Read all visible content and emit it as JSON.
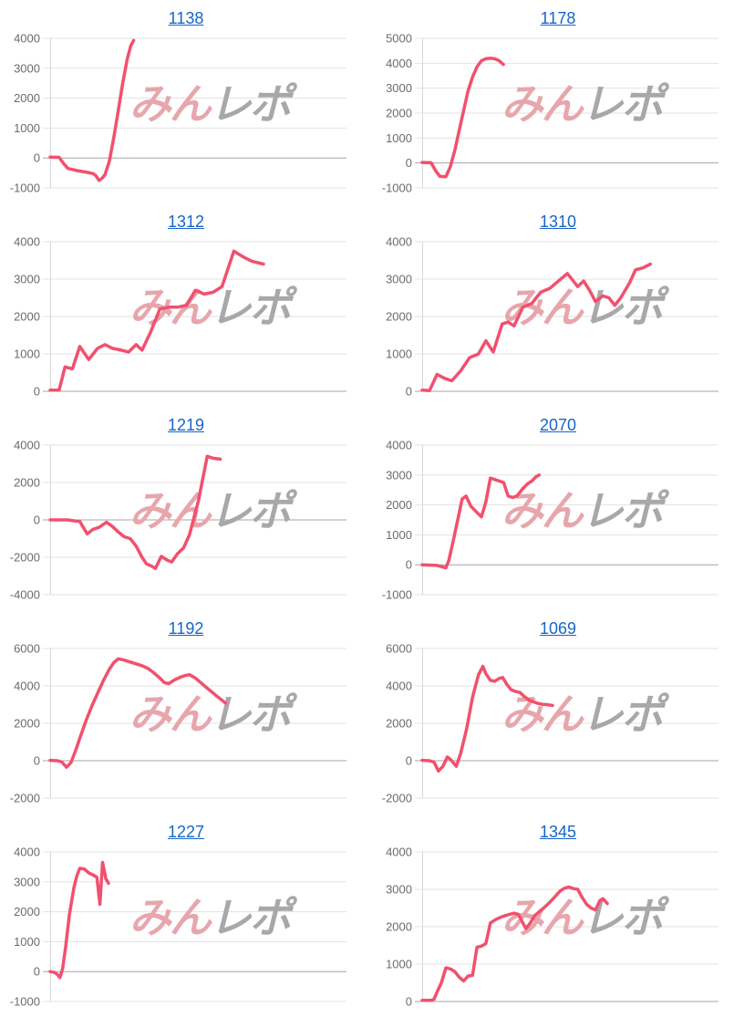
{
  "watermark": {
    "left": "みん",
    "right": "レポ"
  },
  "colors": {
    "line": "#f2506e",
    "link": "#1766c9",
    "tick_label": "#6b6b6b",
    "grid": "#e3e3e3",
    "grid_zero": "#a6a6a6",
    "axis_left": "#d8d8d8",
    "watermark_pink": "#e7a6ac",
    "watermark_gray": "#a8a8a8",
    "background": "#ffffff"
  },
  "chart_data": [
    {
      "type": "line",
      "title": "1138",
      "xlabel": "",
      "ylabel": "",
      "ylim": [
        -1000,
        4000
      ],
      "yticks": [
        4000,
        3000,
        2000,
        1000,
        0,
        -1000
      ],
      "x": "fraction-of-plot-width",
      "grid": true,
      "legend": false,
      "points": [
        [
          0,
          30
        ],
        [
          0.03,
          20
        ],
        [
          0.045,
          -180
        ],
        [
          0.06,
          -350
        ],
        [
          0.09,
          -420
        ],
        [
          0.12,
          -470
        ],
        [
          0.145,
          -520
        ],
        [
          0.155,
          -600
        ],
        [
          0.165,
          -750
        ],
        [
          0.175,
          -680
        ],
        [
          0.185,
          -560
        ],
        [
          0.2,
          -100
        ],
        [
          0.215,
          700
        ],
        [
          0.23,
          1600
        ],
        [
          0.245,
          2500
        ],
        [
          0.26,
          3300
        ],
        [
          0.272,
          3750
        ],
        [
          0.282,
          3930
        ]
      ]
    },
    {
      "type": "line",
      "title": "1178",
      "xlabel": "",
      "ylabel": "",
      "ylim": [
        -1000,
        5000
      ],
      "yticks": [
        5000,
        4000,
        3000,
        2000,
        1000,
        0,
        -1000
      ],
      "x": "fraction-of-plot-width",
      "grid": true,
      "legend": false,
      "points": [
        [
          0,
          20
        ],
        [
          0.03,
          10
        ],
        [
          0.045,
          -300
        ],
        [
          0.06,
          -540
        ],
        [
          0.08,
          -550
        ],
        [
          0.095,
          -150
        ],
        [
          0.11,
          500
        ],
        [
          0.125,
          1300
        ],
        [
          0.14,
          2100
        ],
        [
          0.155,
          2900
        ],
        [
          0.17,
          3450
        ],
        [
          0.185,
          3850
        ],
        [
          0.2,
          4100
        ],
        [
          0.215,
          4180
        ],
        [
          0.23,
          4200
        ],
        [
          0.245,
          4180
        ],
        [
          0.26,
          4100
        ],
        [
          0.274,
          3950
        ]
      ]
    },
    {
      "type": "line",
      "title": "1312",
      "xlabel": "",
      "ylabel": "",
      "ylim": [
        0,
        4000
      ],
      "yticks": [
        4000,
        3000,
        2000,
        1000,
        0
      ],
      "x": "fraction-of-plot-width",
      "grid": true,
      "legend": false,
      "points": [
        [
          0,
          30
        ],
        [
          0.03,
          30
        ],
        [
          0.05,
          650
        ],
        [
          0.075,
          600
        ],
        [
          0.1,
          1200
        ],
        [
          0.13,
          850
        ],
        [
          0.16,
          1150
        ],
        [
          0.185,
          1250
        ],
        [
          0.21,
          1150
        ],
        [
          0.24,
          1100
        ],
        [
          0.265,
          1050
        ],
        [
          0.29,
          1250
        ],
        [
          0.31,
          1100
        ],
        [
          0.34,
          1600
        ],
        [
          0.37,
          2200
        ],
        [
          0.4,
          2250
        ],
        [
          0.43,
          2250
        ],
        [
          0.46,
          2300
        ],
        [
          0.49,
          2700
        ],
        [
          0.52,
          2600
        ],
        [
          0.55,
          2650
        ],
        [
          0.58,
          2800
        ],
        [
          0.62,
          3750
        ],
        [
          0.65,
          3600
        ],
        [
          0.68,
          3480
        ],
        [
          0.72,
          3400
        ]
      ]
    },
    {
      "type": "line",
      "title": "1310",
      "xlabel": "",
      "ylabel": "",
      "ylim": [
        0,
        4000
      ],
      "yticks": [
        4000,
        3000,
        2000,
        1000,
        0
      ],
      "x": "fraction-of-plot-width",
      "grid": true,
      "legend": false,
      "points": [
        [
          0,
          30
        ],
        [
          0.025,
          20
        ],
        [
          0.05,
          450
        ],
        [
          0.075,
          350
        ],
        [
          0.1,
          280
        ],
        [
          0.13,
          550
        ],
        [
          0.16,
          900
        ],
        [
          0.19,
          1000
        ],
        [
          0.215,
          1350
        ],
        [
          0.24,
          1050
        ],
        [
          0.27,
          1800
        ],
        [
          0.29,
          1850
        ],
        [
          0.31,
          1750
        ],
        [
          0.34,
          2250
        ],
        [
          0.37,
          2350
        ],
        [
          0.4,
          2650
        ],
        [
          0.43,
          2750
        ],
        [
          0.46,
          2950
        ],
        [
          0.49,
          3150
        ],
        [
          0.51,
          2950
        ],
        [
          0.525,
          2800
        ],
        [
          0.545,
          2950
        ],
        [
          0.565,
          2700
        ],
        [
          0.585,
          2400
        ],
        [
          0.61,
          2550
        ],
        [
          0.63,
          2500
        ],
        [
          0.65,
          2300
        ],
        [
          0.67,
          2500
        ],
        [
          0.7,
          2900
        ],
        [
          0.72,
          3250
        ],
        [
          0.745,
          3300
        ],
        [
          0.77,
          3400
        ]
      ]
    },
    {
      "type": "line",
      "title": "1219",
      "xlabel": "",
      "ylabel": "",
      "ylim": [
        -4000,
        4000
      ],
      "yticks": [
        4000,
        2000,
        0,
        -2000,
        -4000
      ],
      "x": "fraction-of-plot-width",
      "grid": true,
      "legend": false,
      "points": [
        [
          0,
          0
        ],
        [
          0.06,
          0
        ],
        [
          0.08,
          -50
        ],
        [
          0.1,
          -80
        ],
        [
          0.125,
          -750
        ],
        [
          0.145,
          -500
        ],
        [
          0.165,
          -400
        ],
        [
          0.19,
          -120
        ],
        [
          0.21,
          -350
        ],
        [
          0.23,
          -650
        ],
        [
          0.25,
          -900
        ],
        [
          0.27,
          -1000
        ],
        [
          0.29,
          -1400
        ],
        [
          0.31,
          -2000
        ],
        [
          0.325,
          -2350
        ],
        [
          0.34,
          -2450
        ],
        [
          0.355,
          -2600
        ],
        [
          0.375,
          -1950
        ],
        [
          0.395,
          -2150
        ],
        [
          0.41,
          -2250
        ],
        [
          0.43,
          -1800
        ],
        [
          0.45,
          -1500
        ],
        [
          0.47,
          -800
        ],
        [
          0.5,
          1000
        ],
        [
          0.53,
          3400
        ],
        [
          0.55,
          3300
        ],
        [
          0.574,
          3250
        ]
      ]
    },
    {
      "type": "line",
      "title": "2070",
      "xlabel": "",
      "ylabel": "",
      "ylim": [
        -1000,
        4000
      ],
      "yticks": [
        4000,
        3000,
        2000,
        1000,
        0,
        -1000
      ],
      "x": "fraction-of-plot-width",
      "grid": true,
      "legend": false,
      "points": [
        [
          0,
          0
        ],
        [
          0.05,
          -20
        ],
        [
          0.065,
          -60
        ],
        [
          0.08,
          -100
        ],
        [
          0.09,
          150
        ],
        [
          0.105,
          800
        ],
        [
          0.12,
          1500
        ],
        [
          0.135,
          2200
        ],
        [
          0.148,
          2300
        ],
        [
          0.165,
          1950
        ],
        [
          0.18,
          1800
        ],
        [
          0.2,
          1600
        ],
        [
          0.215,
          2100
        ],
        [
          0.23,
          2900
        ],
        [
          0.245,
          2850
        ],
        [
          0.26,
          2800
        ],
        [
          0.275,
          2750
        ],
        [
          0.29,
          2300
        ],
        [
          0.305,
          2250
        ],
        [
          0.32,
          2300
        ],
        [
          0.34,
          2550
        ],
        [
          0.355,
          2700
        ],
        [
          0.37,
          2800
        ],
        [
          0.385,
          2950
        ],
        [
          0.395,
          3000
        ]
      ]
    },
    {
      "type": "line",
      "title": "1192",
      "xlabel": "",
      "ylabel": "",
      "ylim": [
        -2000,
        6000
      ],
      "yticks": [
        6000,
        4000,
        2000,
        0,
        -2000
      ],
      "x": "fraction-of-plot-width",
      "grid": true,
      "legend": false,
      "points": [
        [
          0,
          20
        ],
        [
          0.025,
          0
        ],
        [
          0.04,
          -80
        ],
        [
          0.055,
          -350
        ],
        [
          0.07,
          -100
        ],
        [
          0.085,
          500
        ],
        [
          0.1,
          1200
        ],
        [
          0.12,
          2100
        ],
        [
          0.14,
          2900
        ],
        [
          0.16,
          3600
        ],
        [
          0.18,
          4300
        ],
        [
          0.2,
          4900
        ],
        [
          0.215,
          5250
        ],
        [
          0.23,
          5450
        ],
        [
          0.25,
          5380
        ],
        [
          0.27,
          5280
        ],
        [
          0.29,
          5180
        ],
        [
          0.31,
          5080
        ],
        [
          0.33,
          4930
        ],
        [
          0.35,
          4700
        ],
        [
          0.37,
          4420
        ],
        [
          0.385,
          4180
        ],
        [
          0.4,
          4120
        ],
        [
          0.42,
          4320
        ],
        [
          0.44,
          4470
        ],
        [
          0.455,
          4550
        ],
        [
          0.47,
          4600
        ],
        [
          0.49,
          4420
        ],
        [
          0.51,
          4150
        ],
        [
          0.53,
          3880
        ],
        [
          0.55,
          3620
        ],
        [
          0.565,
          3420
        ],
        [
          0.58,
          3230
        ],
        [
          0.592,
          3080
        ]
      ]
    },
    {
      "type": "line",
      "title": "1069",
      "xlabel": "",
      "ylabel": "",
      "ylim": [
        -2000,
        6000
      ],
      "yticks": [
        6000,
        4000,
        2000,
        0,
        -2000
      ],
      "x": "fraction-of-plot-width",
      "grid": true,
      "legend": false,
      "points": [
        [
          0,
          20
        ],
        [
          0.025,
          0
        ],
        [
          0.04,
          -80
        ],
        [
          0.055,
          -550
        ],
        [
          0.07,
          -300
        ],
        [
          0.085,
          200
        ],
        [
          0.095,
          80
        ],
        [
          0.105,
          -100
        ],
        [
          0.115,
          -300
        ],
        [
          0.13,
          400
        ],
        [
          0.15,
          1700
        ],
        [
          0.17,
          3400
        ],
        [
          0.19,
          4600
        ],
        [
          0.205,
          5050
        ],
        [
          0.215,
          4650
        ],
        [
          0.23,
          4300
        ],
        [
          0.245,
          4250
        ],
        [
          0.26,
          4400
        ],
        [
          0.272,
          4450
        ],
        [
          0.285,
          4100
        ],
        [
          0.3,
          3800
        ],
        [
          0.315,
          3700
        ],
        [
          0.33,
          3650
        ],
        [
          0.345,
          3430
        ],
        [
          0.36,
          3250
        ],
        [
          0.375,
          3150
        ],
        [
          0.39,
          3070
        ],
        [
          0.405,
          3020
        ],
        [
          0.42,
          3000
        ],
        [
          0.44,
          2950
        ]
      ]
    },
    {
      "type": "line",
      "title": "1227",
      "xlabel": "",
      "ylabel": "",
      "ylim": [
        -1000,
        4000
      ],
      "yticks": [
        4000,
        3000,
        2000,
        1000,
        0,
        -1000
      ],
      "x": "fraction-of-plot-width",
      "grid": true,
      "legend": false,
      "points": [
        [
          0,
          0
        ],
        [
          0.015,
          -30
        ],
        [
          0.025,
          -100
        ],
        [
          0.033,
          -200
        ],
        [
          0.042,
          100
        ],
        [
          0.052,
          800
        ],
        [
          0.065,
          1900
        ],
        [
          0.08,
          2800
        ],
        [
          0.09,
          3200
        ],
        [
          0.1,
          3450
        ],
        [
          0.115,
          3430
        ],
        [
          0.13,
          3300
        ],
        [
          0.145,
          3230
        ],
        [
          0.158,
          3150
        ],
        [
          0.168,
          2250
        ],
        [
          0.177,
          3650
        ],
        [
          0.188,
          3100
        ],
        [
          0.197,
          2950
        ]
      ]
    },
    {
      "type": "line",
      "title": "1345",
      "xlabel": "",
      "ylabel": "",
      "ylim": [
        0,
        4000
      ],
      "yticks": [
        4000,
        3000,
        2000,
        1000,
        0
      ],
      "x": "fraction-of-plot-width",
      "grid": true,
      "legend": false,
      "points": [
        [
          0,
          30
        ],
        [
          0.03,
          30
        ],
        [
          0.04,
          60
        ],
        [
          0.05,
          250
        ],
        [
          0.065,
          500
        ],
        [
          0.08,
          900
        ],
        [
          0.095,
          870
        ],
        [
          0.11,
          800
        ],
        [
          0.125,
          650
        ],
        [
          0.14,
          550
        ],
        [
          0.155,
          680
        ],
        [
          0.17,
          700
        ],
        [
          0.185,
          1450
        ],
        [
          0.2,
          1480
        ],
        [
          0.215,
          1550
        ],
        [
          0.23,
          2100
        ],
        [
          0.25,
          2200
        ],
        [
          0.27,
          2270
        ],
        [
          0.29,
          2320
        ],
        [
          0.31,
          2360
        ],
        [
          0.325,
          2330
        ],
        [
          0.34,
          2100
        ],
        [
          0.35,
          1950
        ],
        [
          0.365,
          2100
        ],
        [
          0.38,
          2300
        ],
        [
          0.395,
          2400
        ],
        [
          0.41,
          2500
        ],
        [
          0.43,
          2650
        ],
        [
          0.45,
          2820
        ],
        [
          0.465,
          2950
        ],
        [
          0.48,
          3030
        ],
        [
          0.495,
          3060
        ],
        [
          0.51,
          3020
        ],
        [
          0.525,
          3000
        ],
        [
          0.54,
          2780
        ],
        [
          0.555,
          2600
        ],
        [
          0.57,
          2500
        ],
        [
          0.585,
          2450
        ],
        [
          0.6,
          2700
        ],
        [
          0.61,
          2750
        ],
        [
          0.618,
          2680
        ],
        [
          0.625,
          2620
        ]
      ]
    }
  ]
}
